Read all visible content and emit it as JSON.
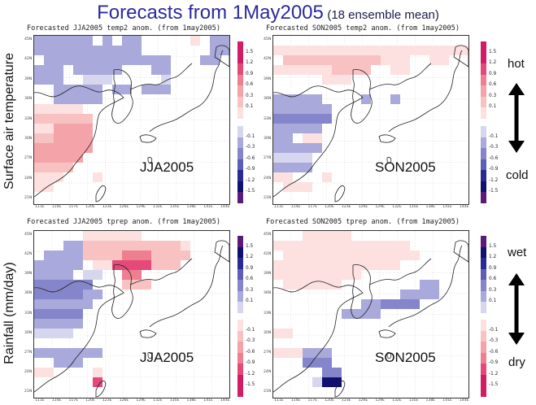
{
  "title": {
    "main": "Forecasts from 1May2005",
    "sub": "(18 ensemble mean)"
  },
  "row_labels": {
    "top": "Surface air temperature",
    "bottom": "Rainfall (mm/day)"
  },
  "panels": [
    {
      "title": "Forecasted JJA2005 temp2 anom. (from 1may2005)",
      "season": "JJA2005"
    },
    {
      "title": "Forecasted SON2005 temp2 anom. (from 1may2005)",
      "season": "SON2005"
    },
    {
      "title": "Forecasted JJA2005 tprep anom. (from 1may2005)",
      "season": "JJA2005"
    },
    {
      "title": "Forecasted SON2005 tprep anom. (from 1may2005)",
      "season": "SON2005"
    }
  ],
  "lat_labels": [
    "45N",
    "42N",
    "39N",
    "36N",
    "33N",
    "30N",
    "27N",
    "24N",
    "21N"
  ],
  "lon_labels": [
    "111E",
    "114E",
    "117E",
    "120E",
    "123E",
    "126E",
    "129E",
    "132E",
    "135E",
    "138E",
    "141E",
    "144E"
  ],
  "colorbar_labels_pos": [
    "1.5",
    "1.2",
    "0.9",
    "0.6",
    "0.3",
    "0.1"
  ],
  "colorbar_labels_neg": [
    "-0.1",
    "-0.3",
    "-0.6",
    "-0.9",
    "-1.2",
    "-1.5"
  ],
  "side_labels": {
    "hot": "hot",
    "cold": "cold",
    "wet": "wet",
    "dry": "dry"
  },
  "colors": {
    "red_scale": [
      "#fde0e0",
      "#f9c2c2",
      "#f4a3a8",
      "#ee7f91",
      "#e4497a",
      "#d21c66"
    ],
    "blue_scale": [
      "#d6d6ef",
      "#a9a9dc",
      "#8585cb",
      "#5e5eb8",
      "#2a2a96",
      "#101070"
    ],
    "purple_end": "#5a1a7a",
    "title_blue": "#2a2a9e"
  }
}
